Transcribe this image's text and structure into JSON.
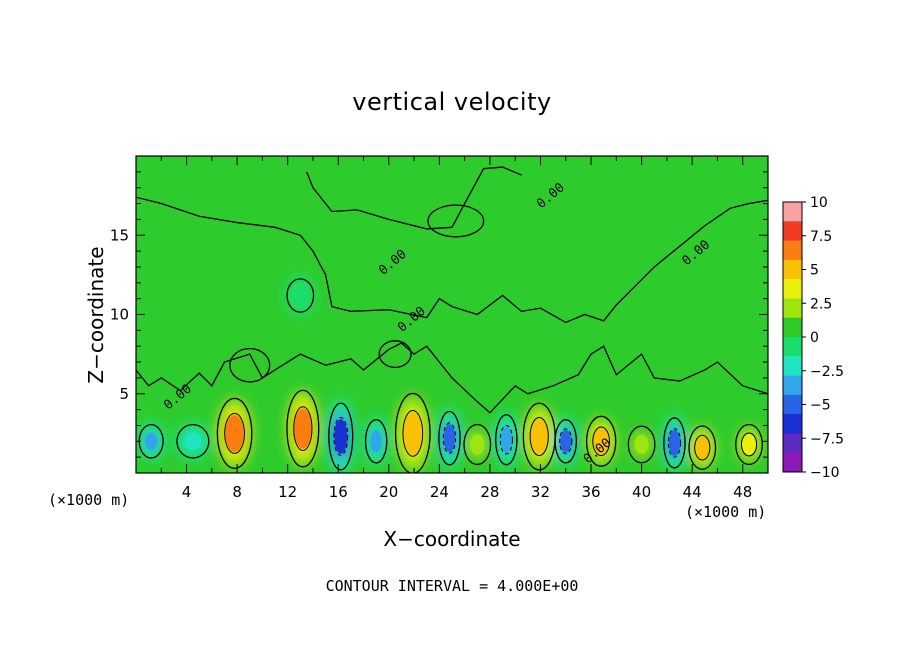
{
  "chart_data": {
    "type": "heatmap",
    "title": "vertical velocity",
    "xlabel": "X−coordinate",
    "ylabel": "Z−coordinate",
    "x_unit_label": "(×1000 m)",
    "x_ticks": [
      4,
      8,
      12,
      16,
      20,
      24,
      28,
      32,
      36,
      40,
      44,
      48
    ],
    "y_ticks": [
      5,
      10,
      15
    ],
    "xlim": [
      0,
      50
    ],
    "ylim": [
      0,
      20
    ],
    "contour_label": "0.00",
    "colorbar": {
      "levels": [
        10,
        7.5,
        5,
        2.5,
        0,
        -2.5,
        -5,
        -7.5,
        -10
      ],
      "labels": [
        "10",
        "7.5",
        "5",
        "2.5",
        "0",
        "−2.5",
        "−5",
        "−7.5",
        "−10"
      ],
      "colors": [
        "#f7a3a3",
        "#f33a24",
        "#fb7d12",
        "#f8c103",
        "#eaf00b",
        "#9fe50f",
        "#31c92a",
        "#1bde6a",
        "#21e5c2",
        "#31a7e9",
        "#2b63e8",
        "#1b2fd6",
        "#5d2ac2",
        "#8d19b6"
      ]
    },
    "cells": [
      {
        "x": 7.8,
        "z": 2.5,
        "rx": 1.3,
        "rz": 2.1,
        "w": 6.0
      },
      {
        "x": 13.2,
        "z": 2.8,
        "rx": 1.2,
        "rz": 2.3,
        "w": 7.0
      },
      {
        "x": 21.9,
        "z": 2.5,
        "rx": 1.3,
        "rz": 2.4,
        "w": 5.5
      },
      {
        "x": 31.9,
        "z": 2.3,
        "rx": 1.2,
        "rz": 2.0,
        "w": 5.0
      },
      {
        "x": 36.8,
        "z": 2.0,
        "rx": 1.1,
        "rz": 1.5,
        "w": 4.5
      },
      {
        "x": 44.8,
        "z": 1.6,
        "rx": 1.0,
        "rz": 1.3,
        "w": 4.5
      },
      {
        "x": 48.5,
        "z": 1.8,
        "rx": 1.0,
        "rz": 1.2,
        "w": 4.0
      },
      {
        "x": 1.2,
        "z": 2.0,
        "rx": 0.9,
        "rz": 1.0,
        "w": -3.5
      },
      {
        "x": 16.2,
        "z": 2.3,
        "rx": 0.9,
        "rz": 2.0,
        "w": -6.5
      },
      {
        "x": 19.0,
        "z": 2.0,
        "rx": 0.8,
        "rz": 1.3,
        "w": -3.5
      },
      {
        "x": 24.8,
        "z": 2.2,
        "rx": 0.8,
        "rz": 1.6,
        "w": -5.0
      },
      {
        "x": 29.3,
        "z": 2.1,
        "rx": 0.8,
        "rz": 1.5,
        "w": -4.0
      },
      {
        "x": 34.0,
        "z": 2.0,
        "rx": 0.8,
        "rz": 1.3,
        "w": -4.5
      },
      {
        "x": 42.6,
        "z": 1.9,
        "rx": 0.8,
        "rz": 1.5,
        "w": -5.5
      },
      {
        "x": 27.0,
        "z": 1.8,
        "rx": 1.0,
        "rz": 1.2,
        "w": 2.5
      },
      {
        "x": 40.0,
        "z": 1.8,
        "rx": 1.0,
        "rz": 1.1,
        "w": 2.5
      },
      {
        "x": 4.5,
        "z": 2.0,
        "rx": 1.2,
        "rz": 1.0,
        "w": -1.5
      },
      {
        "x": 9.0,
        "z": 6.8,
        "rx": 1.5,
        "rz": 1.0,
        "w": 1.0
      },
      {
        "x": 20.5,
        "z": 7.5,
        "rx": 1.2,
        "rz": 0.8,
        "w": 1.0
      },
      {
        "x": 13.0,
        "z": 11.2,
        "rx": 1.0,
        "rz": 1.0,
        "w": -1.0
      }
    ],
    "contour_interval_label": "CONTOUR INTERVAL =  4.000E+00"
  }
}
